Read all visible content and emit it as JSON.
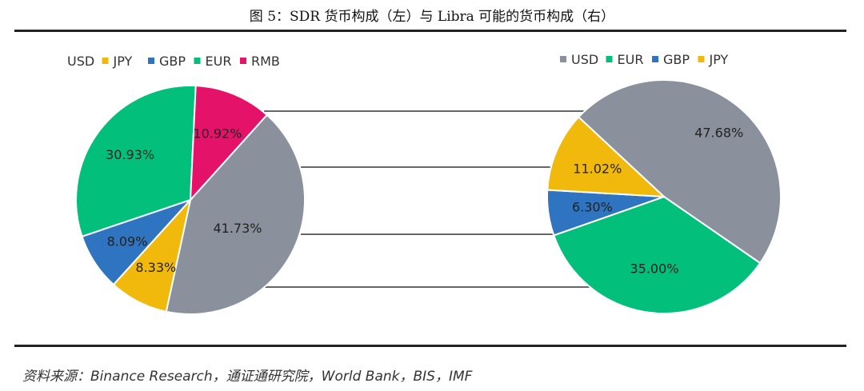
{
  "figure": {
    "title": "图 5：SDR 货币构成（左）与 Libra 可能的货币构成（右）",
    "source": "资料来源：Binance Research，通证通研究院，World Bank，BIS，IMF"
  },
  "chart_data": [
    {
      "type": "pie",
      "title": "",
      "legend": [
        {
          "label": "USD",
          "color": "#8a919c",
          "show_swatch": false
        },
        {
          "label": "JPY",
          "color": "#f0b90b",
          "show_swatch": true
        },
        {
          "label": "GBP",
          "color": "#2f74c0",
          "show_swatch": true
        },
        {
          "label": "EUR",
          "color": "#02c07b",
          "show_swatch": true
        },
        {
          "label": "RMB",
          "color": "#e5126a",
          "show_swatch": true
        }
      ],
      "slices": [
        {
          "label": "USD",
          "value": 41.73,
          "text": "41.73%",
          "color": "#8a919c"
        },
        {
          "label": "JPY",
          "value": 8.33,
          "text": "8.33%",
          "color": "#f0b90b"
        },
        {
          "label": "GBP",
          "value": 8.09,
          "text": "8.09%",
          "color": "#2f74c0"
        },
        {
          "label": "EUR",
          "value": 30.93,
          "text": "30.93%",
          "color": "#02c07b"
        },
        {
          "label": "RMB",
          "value": 10.92,
          "text": "10.92%",
          "color": "#e5126a"
        }
      ]
    },
    {
      "type": "pie",
      "title": "",
      "legend": [
        {
          "label": "USD",
          "color": "#8a919c",
          "show_swatch": true
        },
        {
          "label": "EUR",
          "color": "#02c07b",
          "show_swatch": true
        },
        {
          "label": "GBP",
          "color": "#2f74c0",
          "show_swatch": true
        },
        {
          "label": "JPY",
          "color": "#f0b90b",
          "show_swatch": true
        }
      ],
      "slices": [
        {
          "label": "USD",
          "value": 47.68,
          "text": "47.68%",
          "color": "#8a919c"
        },
        {
          "label": "EUR",
          "value": 35.0,
          "text": "35.00%",
          "color": "#02c07b"
        },
        {
          "label": "GBP",
          "value": 6.3,
          "text": "6.30%",
          "color": "#2f74c0"
        },
        {
          "label": "JPY",
          "value": 11.02,
          "text": "11.02%",
          "color": "#f0b90b"
        }
      ]
    }
  ]
}
